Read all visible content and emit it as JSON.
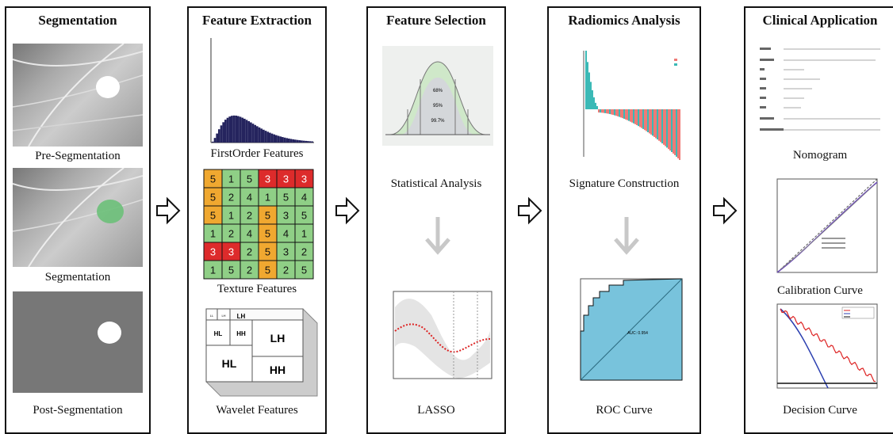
{
  "panels": [
    {
      "title": "Segmentation",
      "captions": [
        "Pre-Segmentation",
        "Segmentation",
        "Post-Segmentation"
      ]
    },
    {
      "title": "Feature Extraction",
      "captions": [
        "FirstOrder Features",
        "Texture Features",
        "Wavelet Features"
      ]
    },
    {
      "title": "Feature Selection",
      "captions": [
        "Statistical Analysis",
        "LASSO"
      ]
    },
    {
      "title": "Radiomics Analysis",
      "captions": [
        "Signature Construction",
        "ROC Curve"
      ]
    },
    {
      "title": "Clinical Application",
      "captions": [
        "Nomogram",
        "Calibration Curve",
        "Decision Curve"
      ]
    }
  ],
  "texture_matrix": [
    [
      "5",
      "1",
      "5",
      "3",
      "3",
      "3"
    ],
    [
      "5",
      "2",
      "4",
      "1",
      "5",
      "4"
    ],
    [
      "5",
      "1",
      "2",
      "5",
      "3",
      "5"
    ],
    [
      "1",
      "2",
      "4",
      "5",
      "4",
      "1"
    ],
    [
      "3",
      "3",
      "2",
      "5",
      "3",
      "2"
    ],
    [
      "1",
      "5",
      "2",
      "5",
      "2",
      "5"
    ]
  ],
  "texture_colors": [
    [
      "o",
      "g",
      "g",
      "r",
      "r",
      "r"
    ],
    [
      "o",
      "g",
      "g",
      "g",
      "g",
      "g"
    ],
    [
      "o",
      "g",
      "g",
      "o",
      "g",
      "g"
    ],
    [
      "g",
      "g",
      "g",
      "o",
      "g",
      "g"
    ],
    [
      "r",
      "r",
      "g",
      "o",
      "g",
      "g"
    ],
    [
      "g",
      "g",
      "g",
      "o",
      "g",
      "g"
    ]
  ],
  "wavelet_labels": {
    "lh_big": "LH",
    "hl_big": "HL",
    "hh_big": "HH",
    "lh_mid": "LH",
    "hl_mid": "HL",
    "hh_mid": "HH",
    "ll_small": "LL",
    "lh_small": "LH",
    "hl_small": "HL",
    "hh_small": "HH"
  },
  "normal_labels": [
    "68%",
    "95%",
    "99.7%"
  ],
  "roc_auc_label": "AUC: 0.954",
  "colors": {
    "histogram": "#25245e",
    "green": "#8fcf86",
    "orange": "#f0a830",
    "red": "#dd2b2b",
    "roc_fill": "#78c3dc",
    "teal": "#3bb9b6",
    "salmon": "#ef7a76"
  }
}
